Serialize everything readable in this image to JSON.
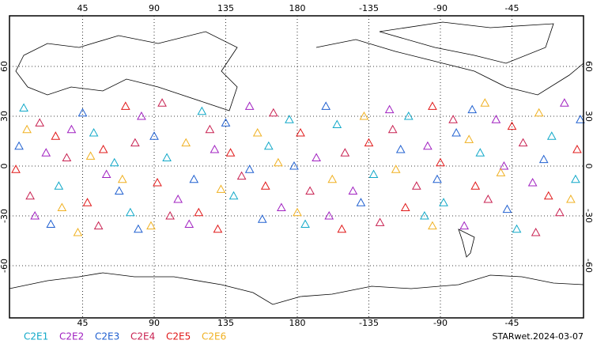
{
  "map": {
    "xlim": [
      0,
      360
    ],
    "ylim": [
      -90,
      90
    ],
    "grid": true,
    "xticks": [
      45,
      90,
      135,
      180,
      {
        "value": 225,
        "label": "-135"
      },
      {
        "value": 270,
        "label": "-90"
      },
      {
        "value": 315,
        "label": "-45"
      }
    ],
    "yticks": [
      -60,
      -30,
      0,
      30,
      60
    ],
    "series": [
      {
        "name": "C2E1",
        "color": "#10a8c8",
        "points": [
          [
            8,
            35
          ],
          [
            30,
            -12
          ],
          [
            52,
            20
          ],
          [
            75,
            -28
          ],
          [
            98,
            5
          ],
          [
            120,
            33
          ],
          [
            140,
            -18
          ],
          [
            162,
            12
          ],
          [
            185,
            -35
          ],
          [
            205,
            25
          ],
          [
            228,
            -5
          ],
          [
            250,
            30
          ],
          [
            272,
            -22
          ],
          [
            295,
            8
          ],
          [
            318,
            -38
          ],
          [
            340,
            18
          ],
          [
            355,
            -8
          ],
          [
            65,
            2
          ],
          [
            175,
            28
          ],
          [
            260,
            -30
          ]
        ]
      },
      {
        "name": "C2E2",
        "color": "#a020c0",
        "points": [
          [
            15,
            -30
          ],
          [
            38,
            22
          ],
          [
            60,
            -5
          ],
          [
            82,
            30
          ],
          [
            105,
            -20
          ],
          [
            128,
            10
          ],
          [
            150,
            36
          ],
          [
            170,
            -25
          ],
          [
            192,
            5
          ],
          [
            215,
            -15
          ],
          [
            238,
            34
          ],
          [
            262,
            12
          ],
          [
            285,
            -36
          ],
          [
            305,
            28
          ],
          [
            328,
            -10
          ],
          [
            348,
            38
          ],
          [
            22,
            8
          ],
          [
            112,
            -35
          ],
          [
            200,
            -30
          ],
          [
            310,
            0
          ]
        ]
      },
      {
        "name": "C2E3",
        "color": "#2060d0",
        "points": [
          [
            5,
            12
          ],
          [
            25,
            -35
          ],
          [
            45,
            32
          ],
          [
            68,
            -15
          ],
          [
            90,
            18
          ],
          [
            115,
            -8
          ],
          [
            135,
            26
          ],
          [
            158,
            -32
          ],
          [
            178,
            0
          ],
          [
            198,
            36
          ],
          [
            220,
            -22
          ],
          [
            245,
            10
          ],
          [
            268,
            -8
          ],
          [
            290,
            34
          ],
          [
            312,
            -26
          ],
          [
            335,
            4
          ],
          [
            358,
            28
          ],
          [
            80,
            -38
          ],
          [
            150,
            -2
          ],
          [
            280,
            20
          ]
        ]
      },
      {
        "name": "C2E4",
        "color": "#c82050",
        "points": [
          [
            12,
            -18
          ],
          [
            35,
            5
          ],
          [
            55,
            -36
          ],
          [
            78,
            14
          ],
          [
            100,
            -30
          ],
          [
            125,
            22
          ],
          [
            145,
            -6
          ],
          [
            165,
            32
          ],
          [
            188,
            -15
          ],
          [
            210,
            8
          ],
          [
            232,
            -34
          ],
          [
            255,
            -12
          ],
          [
            278,
            28
          ],
          [
            300,
            -20
          ],
          [
            322,
            14
          ],
          [
            345,
            -28
          ],
          [
            18,
            26
          ],
          [
            95,
            38
          ],
          [
            240,
            22
          ],
          [
            330,
            -40
          ]
        ]
      },
      {
        "name": "C2E5",
        "color": "#e01818",
        "points": [
          [
            3,
            -2
          ],
          [
            28,
            18
          ],
          [
            48,
            -22
          ],
          [
            72,
            36
          ],
          [
            92,
            -10
          ],
          [
            118,
            -28
          ],
          [
            138,
            8
          ],
          [
            160,
            -12
          ],
          [
            182,
            20
          ],
          [
            208,
            -38
          ],
          [
            225,
            14
          ],
          [
            248,
            -25
          ],
          [
            270,
            2
          ],
          [
            292,
            -12
          ],
          [
            315,
            24
          ],
          [
            338,
            -18
          ],
          [
            356,
            10
          ],
          [
            58,
            10
          ],
          [
            130,
            -38
          ],
          [
            265,
            36
          ]
        ]
      },
      {
        "name": "C2E6",
        "color": "#f0b020",
        "points": [
          [
            10,
            22
          ],
          [
            32,
            -25
          ],
          [
            50,
            6
          ],
          [
            70,
            -8
          ],
          [
            88,
            -36
          ],
          [
            110,
            14
          ],
          [
            132,
            -14
          ],
          [
            155,
            20
          ],
          [
            180,
            -28
          ],
          [
            202,
            -8
          ],
          [
            222,
            30
          ],
          [
            242,
            -2
          ],
          [
            265,
            -36
          ],
          [
            288,
            16
          ],
          [
            308,
            -4
          ],
          [
            332,
            32
          ],
          [
            352,
            -20
          ],
          [
            42,
            -40
          ],
          [
            168,
            2
          ],
          [
            298,
            38
          ]
        ]
      }
    ]
  },
  "footer": "STARwet.2024-03-07"
}
